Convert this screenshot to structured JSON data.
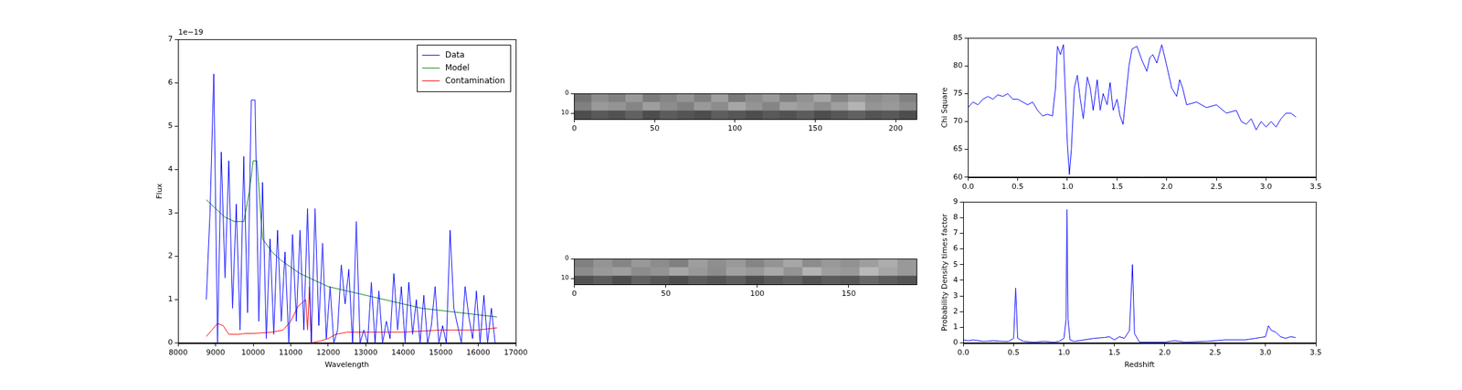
{
  "chart_data": [
    {
      "type": "line",
      "x_label": "Wavelength",
      "y_label": "Flux",
      "y_scale_label": "1e−19",
      "xlim": [
        8000,
        17000
      ],
      "xticks": [
        8000,
        9000,
        10000,
        11000,
        12000,
        13000,
        14000,
        15000,
        16000,
        17000
      ],
      "ylim": [
        0,
        7
      ],
      "yticks": [
        0,
        1,
        2,
        3,
        4,
        5,
        6,
        7
      ],
      "legend": "upper right",
      "grid": false,
      "series": [
        {
          "name": "Data",
          "color": "#0000ff",
          "x": [
            8750,
            8850,
            8950,
            9050,
            9150,
            9250,
            9350,
            9450,
            9550,
            9650,
            9750,
            9850,
            9950,
            10050,
            10150,
            10250,
            10350,
            10450,
            10550,
            10650,
            10750,
            10850,
            10950,
            11050,
            11150,
            11250,
            11350,
            11450,
            11550,
            11650,
            11750,
            11850,
            11950,
            12050,
            12150,
            12250,
            12350,
            12450,
            12550,
            12650,
            12750,
            12850,
            12950,
            13050,
            13150,
            13250,
            13350,
            13450,
            13550,
            13650,
            13750,
            13850,
            13950,
            14050,
            14150,
            14250,
            14350,
            14450,
            14550,
            14650,
            14750,
            14850,
            14950,
            15050,
            15150,
            15250,
            15350,
            15450,
            15550,
            15650,
            15750,
            15850,
            15950,
            16050,
            16150,
            16250,
            16350,
            16450
          ],
          "values": [
            1.0,
            3.0,
            6.2,
            0.0,
            4.4,
            1.5,
            4.2,
            0.8,
            3.2,
            0.3,
            4.3,
            0.7,
            5.6,
            5.6,
            0.5,
            3.7,
            0.1,
            2.4,
            0.2,
            2.6,
            0.5,
            2.1,
            0.0,
            2.5,
            0.5,
            2.6,
            0.3,
            3.1,
            0.0,
            3.1,
            0.4,
            2.3,
            0.1,
            1.3,
            0.0,
            0.3,
            1.8,
            0.9,
            1.7,
            0.0,
            2.8,
            0.0,
            0.3,
            0.0,
            1.4,
            0.0,
            1.2,
            0.0,
            0.5,
            0.1,
            1.6,
            0.3,
            1.3,
            0.0,
            1.4,
            0.2,
            1.0,
            0.0,
            1.1,
            0.0,
            0.4,
            1.3,
            0.0,
            0.4,
            0.0,
            2.6,
            0.8,
            0.4,
            0.0,
            1.3,
            0.6,
            0.1,
            1.2,
            0.0,
            1.1,
            0.0,
            0.8,
            0.0
          ]
        },
        {
          "name": "Model",
          "color": "#008000",
          "x": [
            8750,
            9000,
            9250,
            9500,
            9750,
            9900,
            10000,
            10100,
            10250,
            10500,
            10750,
            11000,
            11250,
            11500,
            11750,
            12000,
            12500,
            13000,
            13500,
            14000,
            14500,
            15000,
            15500,
            16000,
            16500
          ],
          "values": [
            3.3,
            3.1,
            2.9,
            2.8,
            2.8,
            3.5,
            4.2,
            4.2,
            2.4,
            2.1,
            1.9,
            1.75,
            1.6,
            1.5,
            1.4,
            1.3,
            1.2,
            1.1,
            1.0,
            0.9,
            0.8,
            0.75,
            0.7,
            0.65,
            0.6
          ]
        },
        {
          "name": "Contamination",
          "color": "#ff0000",
          "x": [
            8750,
            8900,
            9050,
            9200,
            9350,
            9600,
            9800,
            10000,
            10500,
            10800,
            11000,
            11200,
            11400,
            11450,
            11500,
            11550,
            11800,
            12000,
            12200,
            12500,
            13000,
            14000,
            15000,
            16000,
            16500
          ],
          "values": [
            0.15,
            0.3,
            0.45,
            0.4,
            0.2,
            0.2,
            0.22,
            0.22,
            0.25,
            0.3,
            0.5,
            0.85,
            1.0,
            0.3,
            1.3,
            0.0,
            0.05,
            0.1,
            0.2,
            0.25,
            0.25,
            0.25,
            0.3,
            0.3,
            0.35
          ]
        }
      ]
    },
    {
      "type": "image",
      "xlim": [
        0,
        213
      ],
      "xticks": [
        0,
        50,
        100,
        150,
        200
      ],
      "ylim": [
        0,
        13
      ],
      "yticks": [
        0,
        10
      ],
      "cells": [
        [
          0.45,
          0.55,
          0.5,
          0.6,
          0.48,
          0.52,
          0.58,
          0.5,
          0.62,
          0.47,
          0.55,
          0.6,
          0.5,
          0.57,
          0.65,
          0.52,
          0.6,
          0.55,
          0.58,
          0.5
        ],
        [
          0.5,
          0.6,
          0.58,
          0.52,
          0.62,
          0.55,
          0.5,
          0.6,
          0.55,
          0.65,
          0.58,
          0.52,
          0.63,
          0.6,
          0.55,
          0.62,
          0.7,
          0.58,
          0.6,
          0.55
        ],
        [
          0.3,
          0.35,
          0.32,
          0.38,
          0.3,
          0.36,
          0.33,
          0.3,
          0.37,
          0.34,
          0.3,
          0.35,
          0.32,
          0.36,
          0.3,
          0.34,
          0.38,
          0.33,
          0.35,
          0.3
        ]
      ]
    },
    {
      "type": "image",
      "xlim": [
        0,
        187
      ],
      "xticks": [
        0,
        50,
        100,
        150
      ],
      "ylim": [
        0,
        13
      ],
      "yticks": [
        0,
        10
      ],
      "cells": [
        [
          0.5,
          0.58,
          0.52,
          0.6,
          0.55,
          0.5,
          0.62,
          0.56,
          0.6,
          0.52,
          0.58,
          0.65,
          0.55,
          0.6,
          0.57,
          0.62,
          0.68,
          0.6
        ],
        [
          0.55,
          0.6,
          0.62,
          0.55,
          0.58,
          0.65,
          0.6,
          0.55,
          0.63,
          0.6,
          0.66,
          0.58,
          0.7,
          0.62,
          0.6,
          0.72,
          0.65,
          0.6
        ],
        [
          0.32,
          0.36,
          0.3,
          0.38,
          0.34,
          0.3,
          0.36,
          0.33,
          0.37,
          0.3,
          0.35,
          0.38,
          0.32,
          0.36,
          0.34,
          0.4,
          0.36,
          0.33
        ]
      ]
    },
    {
      "type": "line",
      "y_label": "Chi Square",
      "xlim": [
        0,
        3.5
      ],
      "xticks": [
        {
          "value": 0,
          "label": "0.0"
        },
        0.5,
        {
          "value": 1,
          "label": "1.0"
        },
        1.5,
        {
          "value": 2,
          "label": "2.0"
        },
        2.5,
        {
          "value": 3,
          "label": "3.0"
        },
        3.5
      ],
      "ylim": [
        60,
        85
      ],
      "yticks": [
        60,
        65,
        70,
        75,
        80,
        85
      ],
      "grid": false,
      "series": [
        {
          "name": "Chi Square",
          "color": "#0000ff",
          "x": [
            0,
            0.05,
            0.1,
            0.15,
            0.2,
            0.25,
            0.3,
            0.35,
            0.4,
            0.45,
            0.5,
            0.55,
            0.6,
            0.65,
            0.7,
            0.75,
            0.8,
            0.85,
            0.88,
            0.9,
            0.93,
            0.96,
            0.98,
            1.0,
            1.02,
            1.04,
            1.07,
            1.1,
            1.13,
            1.16,
            1.2,
            1.23,
            1.26,
            1.3,
            1.33,
            1.36,
            1.4,
            1.43,
            1.46,
            1.5,
            1.53,
            1.56,
            1.58,
            1.62,
            1.65,
            1.7,
            1.75,
            1.8,
            1.83,
            1.86,
            1.9,
            1.95,
            2.0,
            2.05,
            2.1,
            2.13,
            2.16,
            2.2,
            2.3,
            2.4,
            2.5,
            2.6,
            2.7,
            2.75,
            2.8,
            2.85,
            2.9,
            2.95,
            3.0,
            3.05,
            3.1,
            3.15,
            3.2,
            3.25,
            3.3
          ],
          "values": [
            72.5,
            73.5,
            73,
            74,
            74.5,
            74,
            74.8,
            74.5,
            75,
            74,
            74,
            73.5,
            73,
            73.5,
            72,
            71,
            71.3,
            71,
            76,
            83.5,
            82,
            83.8,
            75,
            66,
            60.5,
            65,
            76,
            78.3,
            74,
            70.5,
            78,
            76,
            72,
            77.5,
            72,
            75,
            73,
            77,
            72,
            74,
            71,
            69.5,
            73,
            80,
            83,
            83.5,
            81,
            79,
            81.5,
            82,
            80.5,
            83.8,
            80,
            76,
            74.5,
            77.5,
            76,
            73,
            73.5,
            72.5,
            73,
            71.5,
            72,
            70,
            69.5,
            70.5,
            68.5,
            70,
            69,
            70,
            69,
            70.5,
            71.5,
            71.5,
            70.8
          ]
        }
      ]
    },
    {
      "type": "line",
      "x_label": "Redshift",
      "y_label": "Probability Density times factor",
      "xlim": [
        0,
        3.5
      ],
      "xticks": [
        {
          "value": 0,
          "label": "0.0"
        },
        0.5,
        {
          "value": 1,
          "label": "1.0"
        },
        1.5,
        {
          "value": 2,
          "label": "2.0"
        },
        2.5,
        {
          "value": 3,
          "label": "3.0"
        },
        3.5
      ],
      "ylim": [
        0,
        9
      ],
      "yticks": [
        0,
        1,
        2,
        3,
        4,
        5,
        6,
        7,
        8,
        9
      ],
      "grid": false,
      "series": [
        {
          "name": "Probability Density times factor",
          "color": "#0000ff",
          "x": [
            0,
            0.05,
            0.1,
            0.2,
            0.3,
            0.4,
            0.45,
            0.5,
            0.52,
            0.54,
            0.6,
            0.7,
            0.8,
            0.9,
            0.95,
            1.0,
            1.02,
            1.03,
            1.04,
            1.06,
            1.1,
            1.2,
            1.3,
            1.4,
            1.45,
            1.5,
            1.55,
            1.6,
            1.65,
            1.68,
            1.7,
            1.75,
            1.8,
            2.0,
            2.1,
            2.2,
            2.4,
            2.6,
            2.8,
            2.9,
            3.0,
            3.03,
            3.06,
            3.1,
            3.15,
            3.2,
            3.25,
            3.3
          ],
          "values": [
            0.2,
            0.15,
            0.2,
            0.1,
            0.15,
            0.1,
            0.1,
            0.3,
            3.5,
            0.3,
            0.1,
            0.05,
            0.1,
            0.05,
            0.1,
            0.3,
            1.5,
            8.5,
            1.5,
            0.2,
            0.1,
            0.2,
            0.3,
            0.35,
            0.4,
            0.2,
            0.4,
            0.3,
            0.8,
            5.0,
            0.6,
            0.05,
            0.05,
            0.05,
            0.15,
            0.05,
            0.1,
            0.2,
            0.2,
            0.3,
            0.4,
            1.1,
            0.8,
            0.7,
            0.4,
            0.3,
            0.4,
            0.35
          ]
        }
      ]
    }
  ]
}
